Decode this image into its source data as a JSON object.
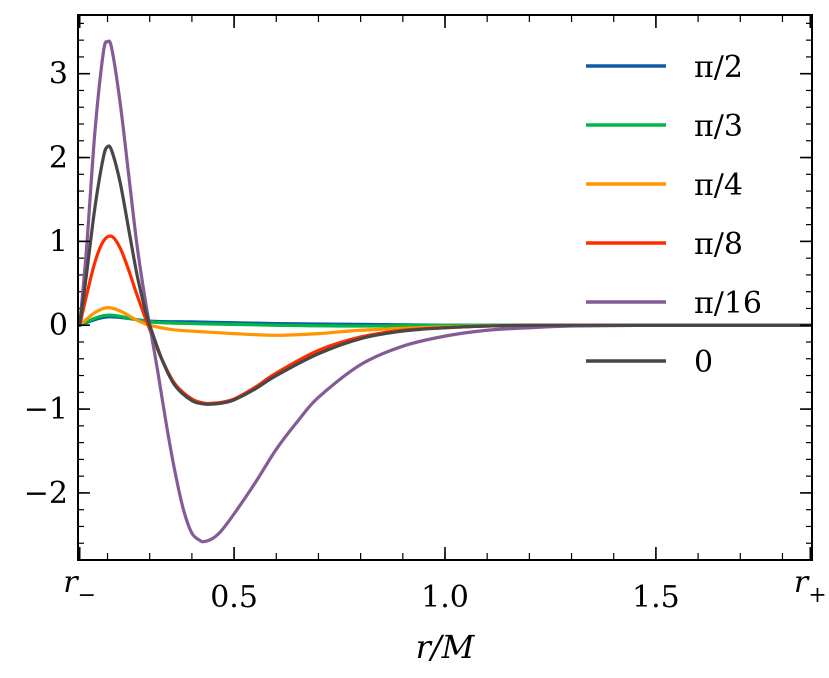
{
  "chart_data": {
    "type": "line",
    "title": "",
    "xlabel": "r/M",
    "ylabel": "",
    "xlim": [
      0.13,
      1.87
    ],
    "ylim": [
      -2.8,
      3.7
    ],
    "x_ticks": [
      {
        "value": 0.134,
        "label": "r−"
      },
      {
        "value": 0.5,
        "label": "0.5"
      },
      {
        "value": 1.0,
        "label": "1.0"
      },
      {
        "value": 1.5,
        "label": "1.5"
      },
      {
        "value": 1.866,
        "label": "r+"
      }
    ],
    "y_ticks": [
      {
        "value": -2,
        "label": "−2"
      },
      {
        "value": -1,
        "label": "−1"
      },
      {
        "value": 0,
        "label": "0"
      },
      {
        "value": 1,
        "label": "1"
      },
      {
        "value": 2,
        "label": "2"
      },
      {
        "value": 3,
        "label": "3"
      }
    ],
    "legend_position": "top-right",
    "series": [
      {
        "name": "π/2",
        "color": "#0c5da5",
        "x": [
          0.134,
          0.2,
          0.3,
          0.4,
          0.5,
          0.6,
          0.8,
          1.0,
          1.3,
          1.866
        ],
        "y": [
          0.0,
          0.1,
          0.05,
          0.04,
          0.03,
          0.02,
          0.01,
          0.0,
          0.0,
          0.0
        ]
      },
      {
        "name": "π/3",
        "color": "#00b945",
        "x": [
          0.134,
          0.2,
          0.3,
          0.4,
          0.5,
          0.6,
          0.8,
          1.0,
          1.3,
          1.866
        ],
        "y": [
          0.0,
          0.12,
          0.04,
          0.02,
          0.01,
          0.0,
          -0.01,
          0.0,
          0.0,
          0.0
        ]
      },
      {
        "name": "π/4",
        "color": "#ff9500",
        "x": [
          0.134,
          0.17,
          0.2,
          0.23,
          0.27,
          0.3,
          0.35,
          0.4,
          0.5,
          0.6,
          0.7,
          0.8,
          1.0,
          1.2,
          1.5,
          1.866
        ],
        "y": [
          0.0,
          0.15,
          0.21,
          0.17,
          0.06,
          0.0,
          -0.05,
          -0.07,
          -0.1,
          -0.12,
          -0.1,
          -0.06,
          -0.02,
          0.0,
          0.0,
          0.0
        ]
      },
      {
        "name": "π/8",
        "color": "#ff2c00",
        "x": [
          0.134,
          0.15,
          0.17,
          0.19,
          0.21,
          0.23,
          0.25,
          0.27,
          0.3,
          0.33,
          0.36,
          0.4,
          0.43,
          0.45,
          0.47,
          0.5,
          0.55,
          0.6,
          0.7,
          0.8,
          0.9,
          1.0,
          1.1,
          1.2,
          1.4,
          1.6,
          1.866
        ],
        "y": [
          0.0,
          0.35,
          0.75,
          1.0,
          1.06,
          0.92,
          0.66,
          0.36,
          -0.05,
          -0.42,
          -0.7,
          -0.88,
          -0.93,
          -0.93,
          -0.92,
          -0.88,
          -0.74,
          -0.57,
          -0.3,
          -0.14,
          -0.06,
          -0.03,
          -0.01,
          0.0,
          0.0,
          0.0,
          0.0
        ]
      },
      {
        "name": "π/16",
        "color": "#845b97",
        "x": [
          0.134,
          0.15,
          0.17,
          0.19,
          0.2,
          0.21,
          0.23,
          0.25,
          0.27,
          0.29,
          0.3,
          0.32,
          0.34,
          0.36,
          0.38,
          0.4,
          0.42,
          0.43,
          0.45,
          0.47,
          0.5,
          0.55,
          0.6,
          0.65,
          0.7,
          0.8,
          0.9,
          1.0,
          1.1,
          1.2,
          1.3,
          1.5,
          1.866
        ],
        "y": [
          0.0,
          0.9,
          2.3,
          3.25,
          3.38,
          3.3,
          2.65,
          1.8,
          0.95,
          0.28,
          0.0,
          -0.58,
          -1.2,
          -1.75,
          -2.2,
          -2.48,
          -2.57,
          -2.58,
          -2.54,
          -2.45,
          -2.25,
          -1.88,
          -1.48,
          -1.15,
          -0.86,
          -0.47,
          -0.25,
          -0.13,
          -0.06,
          -0.03,
          -0.01,
          0.0,
          0.0
        ]
      },
      {
        "name": "0",
        "color": "#474747",
        "x": [
          0.134,
          0.15,
          0.17,
          0.19,
          0.2,
          0.21,
          0.23,
          0.25,
          0.27,
          0.29,
          0.3,
          0.33,
          0.36,
          0.4,
          0.43,
          0.45,
          0.47,
          0.5,
          0.55,
          0.6,
          0.7,
          0.8,
          0.9,
          1.0,
          1.1,
          1.2,
          1.4,
          1.6,
          1.866
        ],
        "y": [
          0.0,
          0.6,
          1.4,
          2.0,
          2.13,
          2.08,
          1.7,
          1.15,
          0.6,
          0.17,
          0.0,
          -0.42,
          -0.72,
          -0.9,
          -0.94,
          -0.94,
          -0.93,
          -0.89,
          -0.76,
          -0.6,
          -0.34,
          -0.16,
          -0.07,
          -0.03,
          -0.01,
          0.0,
          0.0,
          0.0,
          0.0
        ]
      }
    ]
  }
}
